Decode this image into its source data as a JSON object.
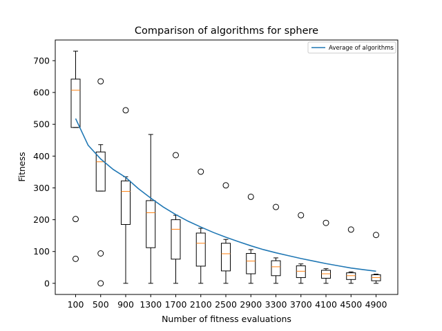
{
  "chart_data": {
    "type": "box",
    "title": "Comparison of algorithms for sphere",
    "xlabel": "Number of fitness evaluations",
    "ylabel": "Fitness",
    "categories": [
      "100",
      "500",
      "900",
      "1300",
      "1700",
      "2100",
      "2500",
      "2900",
      "3300",
      "3700",
      "4100",
      "4500",
      "4900"
    ],
    "ylim": [
      -35,
      765
    ],
    "yticks": [
      0,
      100,
      200,
      300,
      400,
      500,
      600,
      700
    ],
    "legend_position": "top-right",
    "boxes": [
      {
        "category": "100",
        "whisker_low": 490,
        "q1": 490,
        "median": 607,
        "q3": 642,
        "whisker_high": 730,
        "outliers": [
          202,
          77
        ]
      },
      {
        "category": "500",
        "whisker_low": 290,
        "q1": 290,
        "median": 382,
        "q3": 413,
        "whisker_high": 436,
        "outliers": [
          635,
          94,
          0
        ]
      },
      {
        "category": "900",
        "whisker_low": 0,
        "q1": 185,
        "median": 289,
        "q3": 322,
        "whisker_high": 335,
        "outliers": [
          544
        ]
      },
      {
        "category": "1300",
        "whisker_low": 0,
        "q1": 112,
        "median": 222,
        "q3": 260,
        "whisker_high": 468,
        "outliers": []
      },
      {
        "category": "1700",
        "whisker_low": 0,
        "q1": 76,
        "median": 170,
        "q3": 200,
        "whisker_high": 214,
        "outliers": [
          403
        ]
      },
      {
        "category": "2100",
        "whisker_low": 0,
        "q1": 54,
        "median": 126,
        "q3": 158,
        "whisker_high": 173,
        "outliers": [
          351
        ]
      },
      {
        "category": "2500",
        "whisker_low": 0,
        "q1": 39,
        "median": 93,
        "q3": 126,
        "whisker_high": 138,
        "outliers": [
          308
        ]
      },
      {
        "category": "2900",
        "whisker_low": 0,
        "q1": 30,
        "median": 70,
        "q3": 94,
        "whisker_high": 106,
        "outliers": [
          272
        ]
      },
      {
        "category": "3300",
        "whisker_low": 0,
        "q1": 24,
        "median": 52,
        "q3": 71,
        "whisker_high": 80,
        "outliers": [
          240
        ]
      },
      {
        "category": "3700",
        "whisker_low": 0,
        "q1": 18,
        "median": 38,
        "q3": 55,
        "whisker_high": 61,
        "outliers": [
          214
        ]
      },
      {
        "category": "4100",
        "whisker_low": 0,
        "q1": 16,
        "median": 30,
        "q3": 41,
        "whisker_high": 46,
        "outliers": [
          190
        ]
      },
      {
        "category": "4500",
        "whisker_low": 0,
        "q1": 12,
        "median": 24,
        "q3": 33,
        "whisker_high": 36,
        "outliers": [
          169
        ]
      },
      {
        "category": "4900",
        "whisker_low": 0,
        "q1": 8,
        "median": 18,
        "q3": 27,
        "whisker_high": 29,
        "outliers": [
          152
        ]
      }
    ],
    "series": [
      {
        "name": "Average of algorithms",
        "type": "line",
        "color": "#1f77b4",
        "x": [
          100,
          300,
          500,
          700,
          900,
          1100,
          1300,
          1500,
          1700,
          1900,
          2100,
          2300,
          2500,
          2700,
          2900,
          3100,
          3300,
          3500,
          3700,
          3900,
          4100,
          4300,
          4500,
          4700,
          4900
        ],
        "values": [
          518,
          434,
          391,
          358,
          333,
          298,
          268,
          240,
          216,
          195,
          177,
          160,
          145,
          131,
          118,
          106,
          96,
          87,
          78,
          70,
          62,
          55,
          48,
          43,
          38
        ]
      }
    ],
    "colors": {
      "box": "#000000",
      "median": "#ff7f0e",
      "line": "#1f77b4"
    }
  }
}
